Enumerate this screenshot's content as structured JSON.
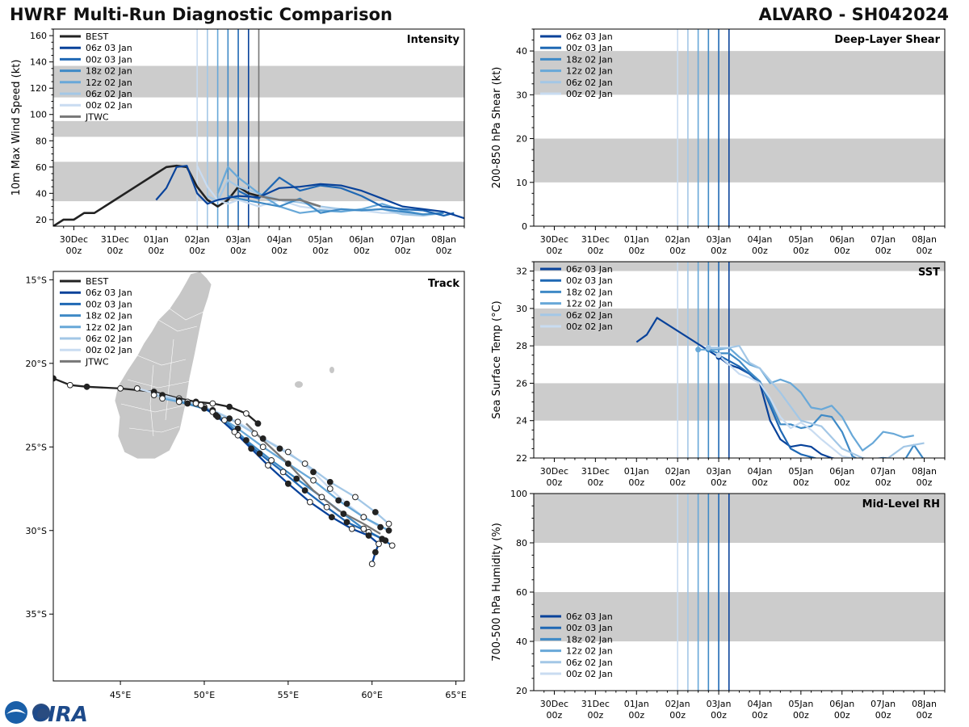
{
  "header": {
    "left_title": "HWRF Multi-Run Diagnostic Comparison",
    "right_title": "ALVARO - SH042024"
  },
  "logo": {
    "text": "CIRA"
  },
  "colors": {
    "BEST": "#222222",
    "JTWC": "#777777",
    "06z 03 Jan": "#08429a",
    "00z 03 Jan": "#1f68b4",
    "18z 02 Jan": "#3f8ac6",
    "12z 02 Jan": "#68a8d8",
    "06z 02 Jan": "#a3c7e6",
    "00z 02 Jan": "#c9dcf1",
    "band": "#cccccc",
    "land": "#c7c7c7"
  },
  "time_axis": {
    "tick_labels": [
      [
        "30Dec",
        "00z"
      ],
      [
        "31Dec",
        "00z"
      ],
      [
        "01Jan",
        "00z"
      ],
      [
        "02Jan",
        "00z"
      ],
      [
        "03Jan",
        "00z"
      ],
      [
        "04Jan",
        "00z"
      ],
      [
        "05Jan",
        "00z"
      ],
      [
        "06Jan",
        "00z"
      ],
      [
        "07Jan",
        "00z"
      ],
      [
        "08Jan",
        "00z"
      ]
    ],
    "range_days": [
      -0.5,
      9.5
    ],
    "note": "x values are days since 30Dec 00z"
  },
  "chart_data": [
    {
      "id": "intensity",
      "type": "line",
      "title": "Intensity",
      "ylabel": "10m Max Wind Speed (kt)",
      "ylim": [
        15,
        165
      ],
      "yticks": [
        20,
        40,
        60,
        80,
        100,
        120,
        140,
        160
      ],
      "bands": [
        [
          34,
          64
        ],
        [
          83,
          95
        ],
        [
          113,
          137
        ]
      ],
      "init_lines": [
        {
          "name": "00z 02 Jan",
          "x": 3.0
        },
        {
          "name": "06z 02 Jan",
          "x": 3.25
        },
        {
          "name": "12z 02 Jan",
          "x": 3.5
        },
        {
          "name": "18z 02 Jan",
          "x": 3.75
        },
        {
          "name": "00z 03 Jan",
          "x": 4.0
        },
        {
          "name": "06z 03 Jan",
          "x": 4.25
        },
        {
          "name": "JTWC",
          "x": 4.5
        }
      ],
      "legend": [
        "BEST",
        "06z 03 Jan",
        "00z 03 Jan",
        "18z 02 Jan",
        "12z 02 Jan",
        "06z 02 Jan",
        "00z 02 Jan",
        "JTWC"
      ],
      "series": [
        {
          "name": "BEST",
          "x": [
            -0.5,
            -0.25,
            0,
            0.25,
            0.5,
            1.0,
            1.5,
            2.0,
            2.25,
            2.5,
            2.75,
            3.0,
            3.25,
            3.5,
            3.75,
            4.0,
            4.25,
            4.5
          ],
          "y": [
            15,
            20,
            20,
            25,
            25,
            35,
            45,
            55,
            60,
            61,
            60,
            45,
            35,
            30,
            35,
            45,
            40,
            38
          ]
        },
        {
          "name": "00z 02 Jan",
          "x": [
            3.0,
            3.25,
            3.5,
            3.75,
            4.0,
            4.5,
            5.0,
            5.5,
            6.0,
            6.5,
            7.0,
            7.5,
            8.0,
            8.5,
            9.0
          ],
          "y": [
            61,
            45,
            35,
            32,
            35,
            30,
            35,
            30,
            28,
            27,
            27,
            25,
            25,
            24,
            25
          ]
        },
        {
          "name": "06z 02 Jan",
          "x": [
            3.25,
            3.5,
            3.75,
            4.0,
            4.5,
            5.0,
            5.5,
            6.0,
            6.5,
            7.0,
            7.5,
            8.0,
            8.5,
            9.0
          ],
          "y": [
            38,
            34,
            50,
            45,
            40,
            35,
            33,
            30,
            28,
            27,
            28,
            24,
            23,
            25
          ]
        },
        {
          "name": "12z 02 Jan",
          "x": [
            3.5,
            3.75,
            4.0,
            4.5,
            5.0,
            5.5,
            6.0,
            6.5,
            7.0,
            7.5,
            8.0,
            8.5,
            9.0
          ],
          "y": [
            40,
            60,
            52,
            40,
            30,
            25,
            27,
            26,
            28,
            32,
            27,
            24,
            25
          ]
        },
        {
          "name": "18z 02 Jan",
          "x": [
            3.75,
            4.0,
            4.5,
            5.0,
            5.5,
            6.0,
            6.5,
            7.0,
            7.5,
            8.0,
            8.5,
            9.0
          ],
          "y": [
            38,
            36,
            33,
            30,
            36,
            25,
            28,
            27,
            28,
            26,
            24,
            25
          ]
        },
        {
          "name": "00z 03 Jan",
          "x": [
            4.0,
            4.25,
            4.5,
            5.0,
            5.5,
            6.0,
            6.5,
            7.0,
            7.5,
            8.0,
            8.5,
            9.0,
            9.25
          ],
          "y": [
            42,
            38,
            36,
            52,
            42,
            46,
            44,
            38,
            30,
            28,
            27,
            23,
            25
          ]
        },
        {
          "name": "06z 03 Jan",
          "x": [
            2.0,
            2.25,
            2.5,
            2.75,
            3.0,
            3.25,
            3.5,
            4.0,
            4.5,
            5.0,
            5.5,
            6.0,
            6.5,
            7.0,
            7.5,
            8.0,
            8.5,
            9.0,
            9.5
          ],
          "y": [
            35,
            44,
            60,
            61,
            40,
            32,
            35,
            38,
            37,
            44,
            45,
            47,
            46,
            42,
            36,
            30,
            28,
            26,
            21
          ]
        },
        {
          "name": "JTWC",
          "x": [
            4.5,
            5.0,
            5.5,
            6.0
          ],
          "y": [
            38,
            35,
            35,
            30
          ]
        }
      ]
    },
    {
      "id": "track",
      "type": "scatter",
      "title": "Track",
      "xlim": [
        41,
        65.5
      ],
      "ylim": [
        -39,
        -14.5
      ],
      "xtick_labels": [
        "45°E",
        "50°E",
        "55°E",
        "60°E",
        "65°E"
      ],
      "xticks": [
        45,
        50,
        55,
        60,
        65
      ],
      "ytick_labels": [
        "15°S",
        "20°S",
        "25°S",
        "30°S",
        "35°S"
      ],
      "yticks": [
        -15,
        -20,
        -25,
        -30,
        -35
      ],
      "legend": [
        "BEST",
        "06z 03 Jan",
        "00z 03 Jan",
        "18z 02 Jan",
        "12z 02 Jan",
        "06z 02 Jan",
        "00z 02 Jan",
        "JTWC"
      ],
      "series": [
        {
          "name": "BEST",
          "lon": [
            41,
            42,
            43,
            45,
            47,
            48.5,
            49.5,
            50.5,
            51.5,
            52.5,
            53.2
          ],
          "lat": [
            -20.9,
            -21.3,
            -21.4,
            -21.5,
            -21.7,
            -22.1,
            -22.3,
            -22.4,
            -22.6,
            -23.0,
            -23.6
          ]
        },
        {
          "name": "00z 02 Jan",
          "lon": [
            46,
            47.5,
            49,
            50.5,
            52,
            53.5,
            55,
            56.5,
            57.5,
            58.5,
            59.5,
            60.5
          ],
          "lat": [
            -21.5,
            -21.9,
            -22.3,
            -22.8,
            -23.5,
            -24.5,
            -25.3,
            -26.5,
            -27.5,
            -28.4,
            -29.2,
            -29.8
          ]
        },
        {
          "name": "06z 02 Jan",
          "lon": [
            47,
            48.5,
            50,
            51.5,
            53,
            54.5,
            56,
            57.5,
            59,
            60.2,
            61
          ],
          "lat": [
            -21.9,
            -22.2,
            -22.6,
            -23.3,
            -24.2,
            -25.1,
            -26.0,
            -27.1,
            -28.0,
            -28.9,
            -29.6
          ]
        },
        {
          "name": "12z 02 Jan",
          "lon": [
            47.5,
            49,
            50.5,
            52,
            53.5,
            55,
            56.5,
            58,
            59.5,
            61
          ],
          "lat": [
            -22.1,
            -22.4,
            -22.9,
            -23.9,
            -25.0,
            -26.0,
            -27.0,
            -28.2,
            -29.2,
            -30.0
          ]
        },
        {
          "name": "18z 02 Jan",
          "lon": [
            48.5,
            50,
            51.2,
            52.5,
            54,
            55.5,
            57,
            58.3,
            59.5,
            60.8
          ],
          "lat": [
            -22.3,
            -22.7,
            -23.4,
            -24.6,
            -25.8,
            -26.9,
            -28.0,
            -29.0,
            -29.9,
            -30.6
          ]
        },
        {
          "name": "00z 03 Jan",
          "lon": [
            49.5,
            50.7,
            52,
            53.3,
            54.7,
            56,
            57.3,
            58.5,
            59.8,
            60.6,
            61.2
          ],
          "lat": [
            -22.4,
            -23.1,
            -24.3,
            -25.4,
            -26.5,
            -27.6,
            -28.6,
            -29.5,
            -30.1,
            -30.5,
            -30.9
          ]
        },
        {
          "name": "06z 03 Jan",
          "lon": [
            49.8,
            50.8,
            51.8,
            52.8,
            53.8,
            55,
            56.3,
            57.6,
            58.8,
            59.8,
            60.4,
            60.2,
            60.0
          ],
          "lat": [
            -22.5,
            -23.2,
            -24.1,
            -25.1,
            -26.1,
            -27.2,
            -28.3,
            -29.2,
            -29.9,
            -30.3,
            -30.8,
            -31.3,
            -32.0
          ]
        },
        {
          "name": "JTWC",
          "lon": [
            52.5,
            53.5,
            55,
            56.5,
            58,
            59.5,
            60.5
          ],
          "lat": [
            -23.6,
            -24.6,
            -26.0,
            -27.6,
            -28.8,
            -29.6,
            -30.2
          ]
        }
      ]
    },
    {
      "id": "shear",
      "type": "line",
      "title": "Deep-Layer Shear",
      "ylabel": "200-850 hPa Shear (kt)",
      "ylim": [
        0,
        45
      ],
      "yticks": [
        0,
        10,
        20,
        30,
        40
      ],
      "bands": [
        [
          10,
          20
        ],
        [
          30,
          40
        ]
      ],
      "init_lines": [
        {
          "name": "00z 02 Jan",
          "x": 3.0
        },
        {
          "name": "06z 02 Jan",
          "x": 3.25
        },
        {
          "name": "12z 02 Jan",
          "x": 3.5
        },
        {
          "name": "18z 02 Jan",
          "x": 3.75
        },
        {
          "name": "00z 03 Jan",
          "x": 4.0
        },
        {
          "name": "06z 03 Jan",
          "x": 4.25
        }
      ],
      "legend": [
        "06z 03 Jan",
        "00z 03 Jan",
        "18z 02 Jan",
        "12z 02 Jan",
        "06z 02 Jan",
        "00z 02 Jan"
      ],
      "series": []
    },
    {
      "id": "sst",
      "type": "line",
      "title": "SST",
      "ylabel": "Sea Surface Temp (°C)",
      "ylim": [
        22,
        32.5
      ],
      "yticks": [
        22,
        24,
        26,
        28,
        30,
        32
      ],
      "bands": [
        [
          24,
          26
        ],
        [
          28,
          30
        ],
        [
          32,
          33
        ]
      ],
      "init_lines": [
        {
          "name": "00z 02 Jan",
          "x": 3.0
        },
        {
          "name": "06z 02 Jan",
          "x": 3.25
        },
        {
          "name": "12z 02 Jan",
          "x": 3.5
        },
        {
          "name": "18z 02 Jan",
          "x": 3.75
        },
        {
          "name": "00z 03 Jan",
          "x": 4.0
        },
        {
          "name": "06z 03 Jan",
          "x": 4.25
        }
      ],
      "legend": [
        "06z 03 Jan",
        "00z 03 Jan",
        "18z 02 Jan",
        "12z 02 Jan",
        "06z 02 Jan",
        "00z 02 Jan"
      ],
      "series": [
        {
          "name": "06z 03 Jan",
          "x": [
            2.0,
            2.25,
            2.5,
            4.0,
            4.25,
            4.5,
            4.75,
            5.0,
            5.25,
            5.5,
            5.75,
            6.0,
            6.25,
            6.5,
            6.75,
            7.0,
            7.5,
            8.0,
            8.5,
            9.0
          ],
          "y": [
            28.2,
            28.6,
            29.5,
            27.4,
            27.0,
            26.8,
            26.5,
            26.0,
            24.0,
            23.0,
            22.6,
            22.7,
            22.6,
            22.2,
            22.0,
            21.9,
            21.8,
            22.0,
            21.9,
            21.8
          ]
        },
        {
          "name": "00z 03 Jan",
          "x": [
            4.0,
            4.25,
            4.5,
            4.75,
            5.0,
            5.25,
            5.5,
            5.75,
            6.0,
            6.5,
            7.0,
            7.5,
            8.0,
            8.5,
            9.0
          ],
          "y": [
            27.5,
            27.2,
            26.9,
            26.5,
            26.1,
            24.8,
            23.5,
            22.5,
            22.2,
            21.9,
            21.8,
            21.9,
            22.0,
            21.8,
            21.7
          ]
        },
        {
          "name": "18z 02 Jan",
          "x": [
            3.75,
            4.0,
            4.25,
            4.5,
            4.75,
            5.0,
            5.25,
            5.5,
            5.75,
            6.0,
            6.25,
            6.5,
            6.75,
            7.0,
            7.25,
            7.5,
            7.75,
            8.0,
            8.25,
            8.5,
            8.75,
            9.0
          ],
          "y": [
            27.8,
            27.6,
            27.6,
            27.2,
            26.6,
            26.1,
            25.0,
            23.8,
            23.8,
            23.6,
            23.7,
            24.3,
            24.2,
            23.4,
            22.1,
            21.8,
            21.7,
            22.0,
            21.9,
            21.8,
            22.7,
            21.9
          ]
        },
        {
          "name": "12z 02 Jan",
          "x": [
            3.5,
            3.75,
            4.0,
            4.25,
            4.5,
            4.75,
            5.0,
            5.25,
            5.5,
            5.75,
            6.0,
            6.25,
            6.5,
            6.75,
            7.0,
            7.25,
            7.5,
            7.75,
            8.0,
            8.25,
            8.5,
            8.75
          ],
          "y": [
            27.8,
            27.8,
            27.8,
            27.9,
            27.4,
            27.0,
            26.8,
            26.0,
            26.2,
            26.0,
            25.5,
            24.7,
            24.6,
            24.8,
            24.2,
            23.2,
            22.4,
            22.8,
            23.4,
            23.3,
            23.1,
            23.2
          ]
        },
        {
          "name": "06z 02 Jan",
          "x": [
            3.75,
            4.0,
            4.25,
            4.5,
            4.75,
            5.0,
            5.5,
            6.0,
            6.5,
            7.0,
            7.5,
            8.0,
            8.5,
            9.0
          ],
          "y": [
            27.9,
            27.9,
            27.9,
            28.0,
            27.1,
            26.8,
            25.5,
            24.0,
            23.7,
            22.5,
            22.0,
            21.8,
            22.6,
            22.8
          ]
        },
        {
          "name": "00z 02 Jan",
          "x": [
            4.0,
            4.25,
            4.5,
            4.75,
            5.0,
            5.25,
            5.5,
            5.75,
            6.0,
            6.25,
            6.5,
            7.0,
            7.5,
            8.0
          ],
          "y": [
            27.5,
            27.0,
            26.5,
            26.3,
            26.0,
            25.2,
            24.2,
            23.6,
            23.9,
            23.5,
            23.0,
            22.1,
            21.9,
            21.8
          ]
        }
      ]
    },
    {
      "id": "rh",
      "type": "line",
      "title": "Mid-Level RH",
      "ylabel": "700-500 hPa Humidity (%)",
      "ylim": [
        20,
        100
      ],
      "yticks": [
        20,
        40,
        60,
        80,
        100
      ],
      "bands": [
        [
          40,
          60
        ],
        [
          80,
          100
        ]
      ],
      "init_lines": [
        {
          "name": "00z 02 Jan",
          "x": 3.0
        },
        {
          "name": "06z 02 Jan",
          "x": 3.25
        },
        {
          "name": "12z 02 Jan",
          "x": 3.5
        },
        {
          "name": "18z 02 Jan",
          "x": 3.75
        },
        {
          "name": "00z 03 Jan",
          "x": 4.0
        },
        {
          "name": "06z 03 Jan",
          "x": 4.25
        }
      ],
      "legend": [
        "06z 03 Jan",
        "00z 03 Jan",
        "18z 02 Jan",
        "12z 02 Jan",
        "06z 02 Jan",
        "00z 02 Jan"
      ],
      "series": []
    }
  ]
}
